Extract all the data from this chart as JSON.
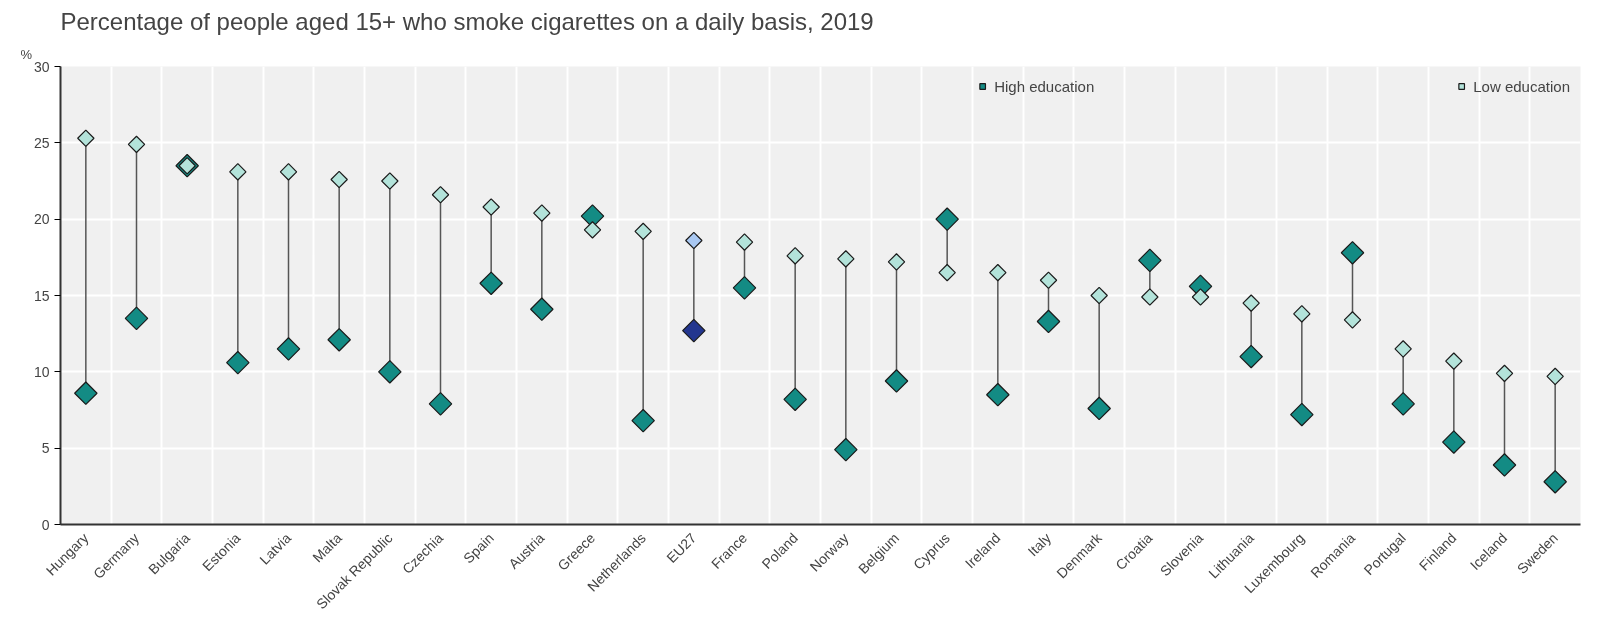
{
  "chart_data": {
    "type": "scatter",
    "title": "Percentage of people aged 15+ who smoke cigarettes on a daily basis, 2019",
    "ylabel": "%",
    "categories": [
      "Hungary",
      "Germany",
      "Bulgaria",
      "Estonia",
      "Latvia",
      "Malta",
      "Slovak Republic",
      "Czechia",
      "Spain",
      "Austria",
      "Greece",
      "Netherlands",
      "EU27",
      "France",
      "Poland",
      "Norway",
      "Belgium",
      "Cyprus",
      "Ireland",
      "Italy",
      "Denmark",
      "Croatia",
      "Slovenia",
      "Lithuania",
      "Luxembourg",
      "Romania",
      "Portugal",
      "Finland",
      "Iceland",
      "Sweden"
    ],
    "series": [
      {
        "name": "High education",
        "color": "#138b84",
        "colors": [
          null,
          null,
          null,
          null,
          null,
          null,
          null,
          null,
          null,
          null,
          null,
          null,
          "#23368f",
          null,
          null,
          null,
          null,
          null,
          null,
          null,
          null,
          null,
          null,
          null,
          null,
          null,
          null,
          null,
          null,
          null
        ],
        "values": [
          8.6,
          13.5,
          23.5,
          10.6,
          11.5,
          12.1,
          10.0,
          7.9,
          15.8,
          14.1,
          20.2,
          6.8,
          12.7,
          15.5,
          8.2,
          4.9,
          9.4,
          20.0,
          8.5,
          13.3,
          7.6,
          17.3,
          15.6,
          11.0,
          7.2,
          17.8,
          7.9,
          5.4,
          3.9,
          2.8
        ]
      },
      {
        "name": "Low education",
        "color": "#b3e3da",
        "colors": [
          null,
          null,
          null,
          null,
          null,
          null,
          null,
          null,
          null,
          null,
          null,
          null,
          "#a9c8f2",
          null,
          null,
          null,
          null,
          null,
          null,
          null,
          null,
          null,
          null,
          null,
          null,
          null,
          null,
          null,
          null,
          null
        ],
        "values": [
          25.3,
          24.9,
          23.5,
          23.1,
          23.1,
          22.6,
          22.5,
          21.6,
          20.8,
          20.4,
          19.3,
          19.2,
          18.6,
          18.5,
          17.6,
          17.4,
          17.2,
          16.5,
          16.5,
          16.0,
          15.0,
          14.9,
          14.9,
          14.5,
          13.8,
          13.4,
          11.5,
          10.7,
          9.9,
          9.7
        ]
      }
    ],
    "ylim": [
      0,
      30
    ],
    "yticks": [
      0,
      5,
      10,
      15,
      20,
      25,
      30
    ],
    "grid": true,
    "legend": "top right",
    "marker": "diamond"
  }
}
